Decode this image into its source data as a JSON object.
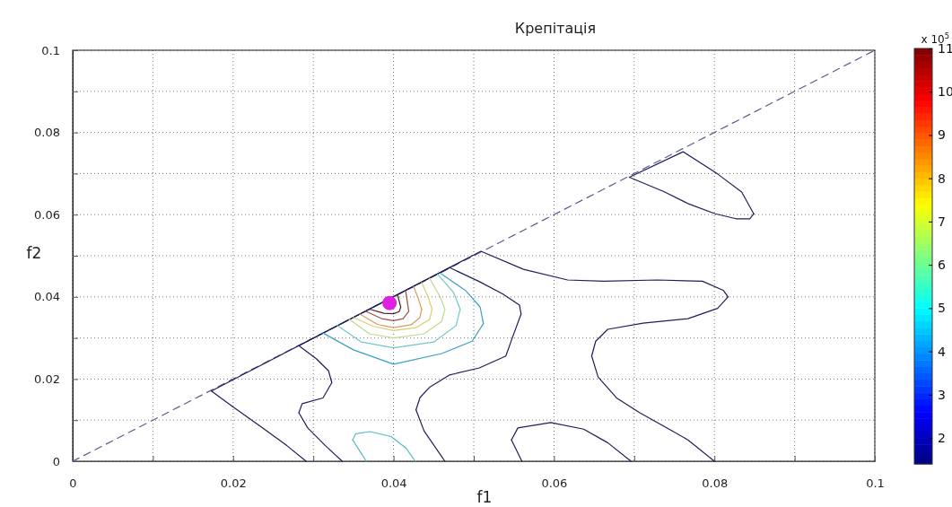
{
  "chart_data": {
    "type": "line",
    "title": "Крепітація",
    "xlabel": "f1",
    "ylabel": "f2",
    "clabel": "x 10$^{5}$",
    "xlim": [
      0,
      0.1
    ],
    "ylim": [
      0,
      0.1
    ],
    "xticks": [
      0,
      {
        "value": 0.01,
        "label": null
      },
      0.02,
      {
        "value": 0.03,
        "label": null
      },
      0.04,
      {
        "value": 0.05,
        "label": null
      },
      0.06,
      {
        "value": 0.07,
        "label": null
      },
      0.08,
      {
        "value": 0.09,
        "label": null
      },
      0.1
    ],
    "yticks": [
      0,
      {
        "value": 0.01,
        "label": null
      },
      0.02,
      {
        "value": 0.03,
        "label": null
      },
      0.04,
      {
        "value": 0.05,
        "label": null
      },
      0.06,
      {
        "value": 0.07,
        "label": null
      },
      0.08,
      {
        "value": 0.09,
        "label": null
      },
      0.1
    ],
    "clim": [
      1.4,
      11
    ],
    "cticks": [
      2,
      3,
      4,
      5,
      6,
      7,
      8,
      9,
      10,
      11
    ],
    "grid": true,
    "marker": "none",
    "line_style": "solid",
    "series": [
      {
        "color": "#5a5a90",
        "line_style": "dashed",
        "x": [
          0,
          0.1
        ],
        "values": [
          0,
          0.1
        ]
      },
      {
        "color": "#1e1e5c",
        "x": [
          0.0694,
          0.0761,
          0.0804,
          0.0834,
          0.0849
        ],
        "values": [
          0.0691,
          0.0753,
          0.0699,
          0.0655,
          0.0602
        ]
      },
      {
        "color": "#1e1e5c",
        "x": [
          0.0849,
          0.0844,
          0.0827,
          0.0801,
          0.0767,
          0.0737,
          0.0694
        ],
        "values": [
          0.0602,
          0.059,
          0.059,
          0.0602,
          0.0627,
          0.0656,
          0.0691
        ]
      },
      {
        "color": "#1e1e5c",
        "x": [
          0.0291,
          0.0267,
          0.0237,
          0.02,
          0.0173
        ],
        "values": [
          0,
          0.0038,
          0.0081,
          0.0132,
          0.0171
        ]
      },
      {
        "color": "#1e1e5c",
        "x": [
          0.0173,
          0.0509,
          0.0562,
          0.0617,
          0.0662,
          0.0729,
          0.0785,
          0.0811,
          0.0817
        ],
        "values": [
          0.0171,
          0.0511,
          0.0467,
          0.0441,
          0.0438,
          0.0441,
          0.0438,
          0.0416,
          0.04
        ]
      },
      {
        "color": "#1e1e5c",
        "x": [
          0.0817,
          0.0804,
          0.0767,
          0.0711,
          0.0667,
          0.0652,
          0.0647
        ],
        "values": [
          0.04,
          0.0372,
          0.0347,
          0.0336,
          0.0321,
          0.0292,
          0.0256
        ]
      },
      {
        "color": "#1e1e5c",
        "x": [
          0.0647,
          0.0655,
          0.0678,
          0.0707,
          0.0737,
          0.0767,
          0.08
        ],
        "values": [
          0.0256,
          0.0205,
          0.0154,
          0.0118,
          0.0085,
          0.0052,
          0
        ]
      },
      {
        "color": "#1e1e5c",
        "x": [
          0.0336,
          0.0315,
          0.0293,
          0.0282
        ],
        "values": [
          0,
          0.0038,
          0.0081,
          0.0118
        ]
      },
      {
        "color": "#1e1e5c",
        "x": [
          0.0282,
          0.0286,
          0.0312,
          0.0323
        ],
        "values": [
          0.0118,
          0.014,
          0.0154,
          0.0191
        ]
      },
      {
        "color": "#1e1e5c",
        "x": [
          0.0323,
          0.0319,
          0.0304,
          0.0282
        ],
        "values": [
          0.0191,
          0.022,
          0.0249,
          0.0281
        ]
      },
      {
        "color": "#1e1e5c",
        "x": [
          0.0282,
          0.047,
          0.0506,
          0.0536,
          0.0557,
          0.0559
        ],
        "values": [
          0.0281,
          0.0471,
          0.0438,
          0.0407,
          0.038,
          0.0358
        ]
      },
      {
        "color": "#1e1e5c",
        "x": [
          0.0559,
          0.0548,
          0.054,
          0.0507,
          0.047,
          0.0445,
          0.0433,
          0.0428
        ],
        "values": [
          0.0358,
          0.03,
          0.0256,
          0.0227,
          0.021,
          0.018,
          0.0155,
          0.0125
        ]
      },
      {
        "color": "#1e1e5c",
        "x": [
          0.0428,
          0.0438,
          0.0464
        ],
        "values": [
          0.0125,
          0.0074,
          0
        ]
      },
      {
        "color": "#1e1e5c",
        "x": [
          0.056,
          0.0547
        ],
        "values": [
          0,
          0.0052
        ]
      },
      {
        "color": "#1e1e5c",
        "x": [
          0.0547,
          0.0555,
          0.0596,
          0.0637,
          0.0667,
          0.0696
        ],
        "values": [
          0.0052,
          0.0081,
          0.0094,
          0.0078,
          0.0045,
          0
        ]
      },
      {
        "color": "#5ab8c8",
        "x": [
          0.0366,
          0.0349
        ],
        "values": [
          0,
          0.0052
        ]
      },
      {
        "color": "#5ab8c8",
        "x": [
          0.0349,
          0.0353,
          0.0371,
          0.0397,
          0.0416,
          0.0427
        ],
        "values": [
          0.0052,
          0.0067,
          0.0072,
          0.006,
          0.0031,
          0
        ]
      },
      {
        "color": "#3aa0c8",
        "x": [
          0.0312,
          0.035,
          0.04,
          0.046,
          0.0498,
          0.0512
        ],
        "values": [
          0.0312,
          0.0271,
          0.0236,
          0.0262,
          0.0292,
          0.0335
        ]
      },
      {
        "color": "#3aa0c8",
        "x": [
          0.0512,
          0.0508,
          0.049,
          0.0458
        ],
        "values": [
          0.0335,
          0.0375,
          0.0415,
          0.0458
        ]
      },
      {
        "color": "#70c8c8",
        "x": [
          0.033,
          0.036,
          0.04,
          0.045,
          0.0478,
          0.0483
        ],
        "values": [
          0.033,
          0.029,
          0.0276,
          0.029,
          0.033,
          0.037
        ]
      },
      {
        "color": "#70c8c8",
        "x": [
          0.0483,
          0.0475,
          0.0455
        ],
        "values": [
          0.037,
          0.041,
          0.0455
        ]
      },
      {
        "color": "#c0d890",
        "x": [
          0.0345,
          0.037,
          0.04,
          0.0438,
          0.046,
          0.0464
        ],
        "values": [
          0.0345,
          0.031,
          0.03,
          0.031,
          0.034,
          0.037
        ]
      },
      {
        "color": "#c0d890",
        "x": [
          0.0464,
          0.0458,
          0.0445
        ],
        "values": [
          0.037,
          0.04,
          0.0445
        ]
      },
      {
        "color": "#e0cc70",
        "x": [
          0.035,
          0.0375,
          0.04,
          0.0428,
          0.0445,
          0.0448
        ],
        "values": [
          0.035,
          0.0328,
          0.0318,
          0.0325,
          0.0345,
          0.037
        ]
      },
      {
        "color": "#e0cc70",
        "x": [
          0.0448,
          0.0443,
          0.0435
        ],
        "values": [
          0.037,
          0.04,
          0.0435
        ]
      },
      {
        "color": "#d89a60",
        "x": [
          0.0358,
          0.038,
          0.04,
          0.0422,
          0.0433,
          0.0435
        ],
        "values": [
          0.0358,
          0.0333,
          0.0325,
          0.0332,
          0.035,
          0.037
        ]
      },
      {
        "color": "#d89a60",
        "x": [
          0.0435,
          0.0431,
          0.0425
        ],
        "values": [
          0.037,
          0.0395,
          0.0425
        ]
      },
      {
        "color": "#a05040",
        "x": [
          0.0365,
          0.0385,
          0.04,
          0.0412,
          0.0419
        ],
        "values": [
          0.0365,
          0.0347,
          0.0342,
          0.0347,
          0.0365
        ]
      },
      {
        "color": "#a05040",
        "x": [
          0.0419,
          0.0417,
          0.0415
        ],
        "values": [
          0.0365,
          0.039,
          0.0415
        ]
      },
      {
        "color": "#502030",
        "x": [
          0.037,
          0.0388,
          0.04,
          0.0407,
          0.0409
        ],
        "values": [
          0.037,
          0.036,
          0.0359,
          0.0364,
          0.0375
        ]
      },
      {
        "color": "#502030",
        "x": [
          0.0409,
          0.0405
        ],
        "values": [
          0.0375,
          0.0405
        ]
      },
      {
        "type": "scatter",
        "marker": "circle",
        "color": "#e020e0",
        "x": [
          0.0395
        ],
        "values": [
          0.0385
        ]
      }
    ]
  }
}
